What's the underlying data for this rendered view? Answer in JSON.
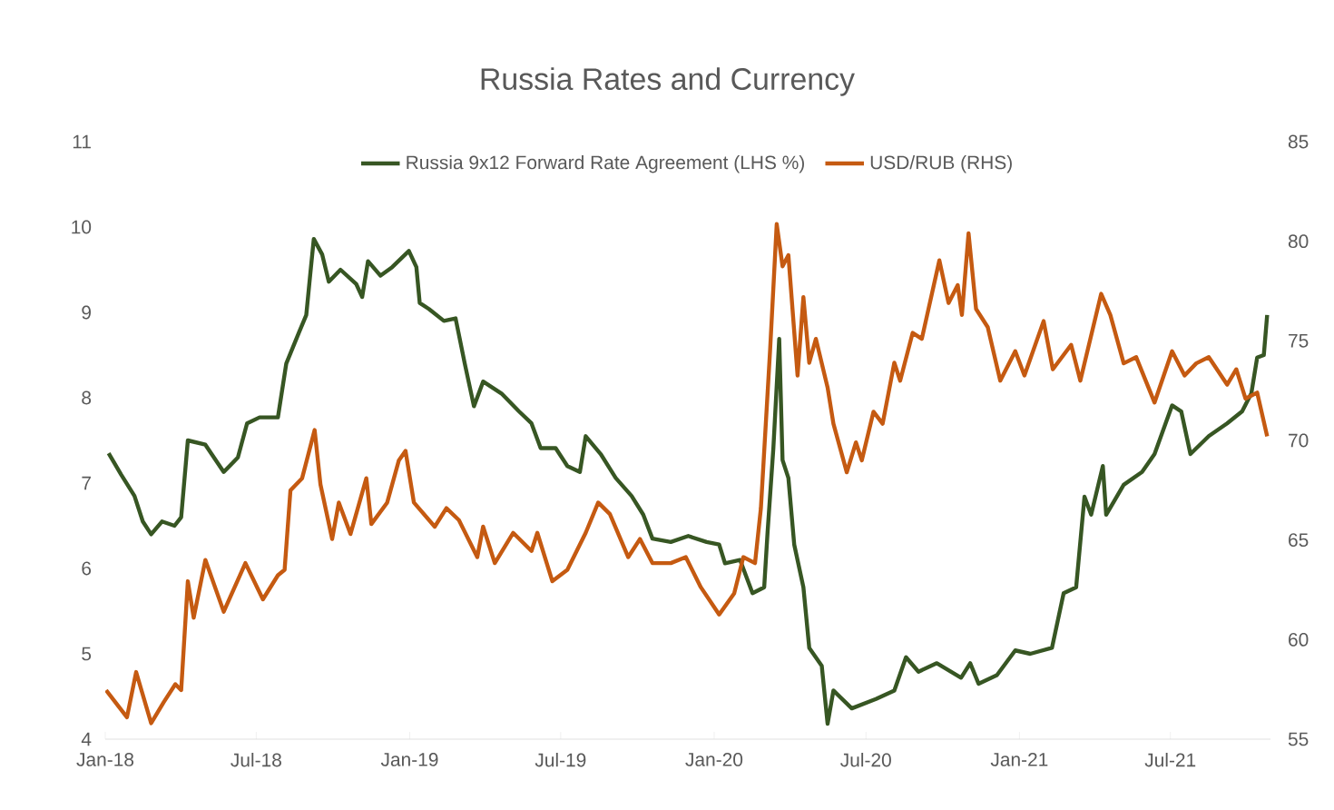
{
  "chart_data": {
    "type": "line",
    "title": "Russia Rates and Currency",
    "legend": "top",
    "xlim": [
      "2018-01-01",
      "2021-10-29"
    ],
    "xticks": [
      {
        "value": "2018-01-01",
        "label": "Jan-18"
      },
      {
        "value": "2018-07-01",
        "label": "Jul-18"
      },
      {
        "value": "2019-01-01",
        "label": "Jan-19"
      },
      {
        "value": "2019-07-01",
        "label": "Jul-19"
      },
      {
        "value": "2020-01-01",
        "label": "Jan-20"
      },
      {
        "value": "2020-07-01",
        "label": "Jul-20"
      },
      {
        "value": "2021-01-01",
        "label": "Jan-21"
      },
      {
        "value": "2021-07-01",
        "label": "Jul-21"
      }
    ],
    "ylim": [
      4,
      11
    ],
    "yticks": [
      4,
      5,
      6,
      7,
      8,
      9,
      10,
      11
    ],
    "y2lim": [
      55,
      85
    ],
    "y2ticks": [
      55,
      60,
      65,
      70,
      75,
      80,
      85
    ],
    "series": [
      {
        "name": "Russia 9x12 Forward Rate Agreement (LHS %)",
        "color": "#375623",
        "x": [
          "2018-01-05",
          "2018-01-20",
          "2018-02-05",
          "2018-02-15",
          "2018-02-25",
          "2018-03-10",
          "2018-03-25",
          "2018-04-02",
          "2018-04-10",
          "2018-05-01",
          "2018-05-23",
          "2018-06-09",
          "2018-06-20",
          "2018-07-05",
          "2018-07-27",
          "2018-08-06",
          "2018-08-21",
          "2018-08-30",
          "2018-09-04",
          "2018-09-08",
          "2018-09-18",
          "2018-09-26",
          "2018-10-10",
          "2018-10-29",
          "2018-11-05",
          "2018-11-12",
          "2018-11-27",
          "2018-12-11",
          "2018-12-31",
          "2019-01-09",
          "2019-01-13",
          "2019-01-24",
          "2019-02-11",
          "2019-02-25",
          "2019-03-08",
          "2019-03-19",
          "2019-03-30",
          "2019-04-21",
          "2019-05-12",
          "2019-05-27",
          "2019-06-07",
          "2019-06-25",
          "2019-07-09",
          "2019-07-24",
          "2019-07-31",
          "2019-08-18",
          "2019-09-05",
          "2019-09-24",
          "2019-10-08",
          "2019-10-19",
          "2019-11-10",
          "2019-12-01",
          "2019-12-23",
          "2020-01-07",
          "2020-01-14",
          "2020-02-01",
          "2020-02-16",
          "2020-03-01",
          "2020-03-05",
          "2020-03-12",
          "2020-03-19",
          "2020-03-23",
          "2020-03-30",
          "2020-04-06",
          "2020-04-17",
          "2020-04-24",
          "2020-05-09",
          "2020-05-16",
          "2020-05-23",
          "2020-06-14",
          "2020-07-13",
          "2020-08-04",
          "2020-08-18",
          "2020-09-02",
          "2020-09-24",
          "2020-10-23",
          "2020-11-03",
          "2020-11-13",
          "2020-12-05",
          "2020-12-27",
          "2021-01-14",
          "2021-02-09",
          "2021-02-23",
          "2021-03-10",
          "2021-03-20",
          "2021-03-28",
          "2021-04-11",
          "2021-04-15",
          "2021-05-06",
          "2021-05-28",
          "2021-06-12",
          "2021-07-03",
          "2021-07-14",
          "2021-07-25",
          "2021-08-16",
          "2021-09-07",
          "2021-09-25",
          "2021-10-06",
          "2021-10-13",
          "2021-10-21",
          "2021-10-25"
        ],
        "values": [
          7.35,
          7.1,
          6.85,
          6.55,
          6.4,
          6.55,
          6.5,
          6.6,
          7.5,
          7.45,
          7.13,
          7.3,
          7.7,
          7.77,
          7.77,
          8.4,
          8.76,
          8.97,
          9.47,
          9.86,
          9.68,
          9.36,
          9.5,
          9.33,
          9.18,
          9.6,
          9.43,
          9.53,
          9.72,
          9.53,
          9.11,
          9.04,
          8.9,
          8.93,
          8.4,
          7.9,
          8.19,
          8.05,
          7.84,
          7.7,
          7.41,
          7.41,
          7.2,
          7.13,
          7.55,
          7.34,
          7.06,
          6.85,
          6.63,
          6.35,
          6.31,
          6.38,
          6.31,
          6.28,
          6.06,
          6.1,
          5.71,
          5.78,
          6.42,
          7.41,
          8.69,
          7.27,
          7.06,
          6.28,
          5.78,
          5.07,
          4.86,
          4.18,
          4.57,
          4.36,
          4.47,
          4.57,
          4.96,
          4.79,
          4.89,
          4.72,
          4.89,
          4.65,
          4.75,
          5.04,
          5.0,
          5.07,
          5.71,
          5.78,
          6.84,
          6.63,
          7.2,
          6.63,
          6.98,
          7.13,
          7.34,
          7.91,
          7.84,
          7.34,
          7.55,
          7.7,
          7.84,
          8.05,
          8.47,
          8.5,
          8.97
        ]
      },
      {
        "name": "USD/RUB (RHS)",
        "color": "#c55a11",
        "axis": "y2",
        "x": [
          "2018-01-02",
          "2018-01-27",
          "2018-02-07",
          "2018-02-25",
          "2018-03-12",
          "2018-03-26",
          "2018-04-02",
          "2018-04-10",
          "2018-04-17",
          "2018-05-01",
          "2018-05-23",
          "2018-06-18",
          "2018-07-09",
          "2018-07-27",
          "2018-08-04",
          "2018-08-11",
          "2018-08-25",
          "2018-09-09",
          "2018-09-16",
          "2018-09-30",
          "2018-10-08",
          "2018-10-22",
          "2018-11-10",
          "2018-11-16",
          "2018-12-05",
          "2018-12-19",
          "2018-12-27",
          "2019-01-06",
          "2019-01-31",
          "2019-02-14",
          "2019-03-01",
          "2019-03-23",
          "2019-03-30",
          "2019-04-13",
          "2019-05-05",
          "2019-05-27",
          "2019-06-03",
          "2019-06-21",
          "2019-07-09",
          "2019-07-31",
          "2019-08-15",
          "2019-08-29",
          "2019-09-20",
          "2019-10-04",
          "2019-10-19",
          "2019-11-10",
          "2019-11-28",
          "2019-12-16",
          "2020-01-07",
          "2020-01-25",
          "2020-02-05",
          "2020-02-19",
          "2020-02-26",
          "2020-03-08",
          "2020-03-16",
          "2020-03-23",
          "2020-03-30",
          "2020-04-10",
          "2020-04-17",
          "2020-04-24",
          "2020-05-02",
          "2020-05-16",
          "2020-05-23",
          "2020-06-08",
          "2020-06-19",
          "2020-06-26",
          "2020-07-10",
          "2020-07-21",
          "2020-08-04",
          "2020-08-11",
          "2020-08-26",
          "2020-09-06",
          "2020-09-27",
          "2020-10-08",
          "2020-10-19",
          "2020-10-24",
          "2020-11-01",
          "2020-11-10",
          "2020-11-24",
          "2020-12-09",
          "2020-12-27",
          "2021-01-07",
          "2021-01-30",
          "2021-02-10",
          "2021-03-04",
          "2021-03-15",
          "2021-04-09",
          "2021-04-20",
          "2021-05-06",
          "2021-05-21",
          "2021-06-12",
          "2021-07-03",
          "2021-07-18",
          "2021-08-01",
          "2021-08-16",
          "2021-09-07",
          "2021-09-18",
          "2021-09-29",
          "2021-10-13",
          "2021-10-25"
        ],
        "values": [
          57.46,
          56.1,
          58.37,
          55.8,
          56.85,
          57.76,
          57.46,
          62.93,
          61.1,
          64.0,
          61.4,
          63.84,
          62.02,
          63.23,
          63.5,
          67.49,
          68.1,
          70.52,
          67.79,
          65.05,
          66.88,
          65.3,
          68.1,
          65.8,
          66.88,
          69.0,
          69.47,
          66.88,
          65.67,
          66.6,
          66.0,
          64.14,
          65.67,
          63.84,
          65.36,
          64.45,
          65.36,
          62.93,
          63.5,
          65.36,
          66.88,
          66.3,
          64.14,
          65.05,
          63.84,
          63.84,
          64.14,
          62.63,
          61.26,
          62.32,
          64.14,
          63.84,
          66.58,
          74.48,
          80.86,
          78.74,
          79.3,
          73.26,
          77.2,
          73.9,
          75.1,
          72.66,
          70.84,
          68.4,
          69.9,
          69.0,
          71.44,
          70.84,
          73.9,
          73.0,
          75.4,
          75.1,
          79.04,
          76.9,
          77.8,
          76.3,
          80.4,
          76.6,
          75.69,
          73.0,
          74.48,
          73.26,
          75.99,
          73.57,
          74.8,
          73.0,
          77.36,
          76.3,
          73.87,
          74.18,
          71.9,
          74.48,
          73.26,
          73.87,
          74.18,
          72.8,
          73.57,
          72.1,
          72.4,
          70.2
        ]
      }
    ]
  }
}
